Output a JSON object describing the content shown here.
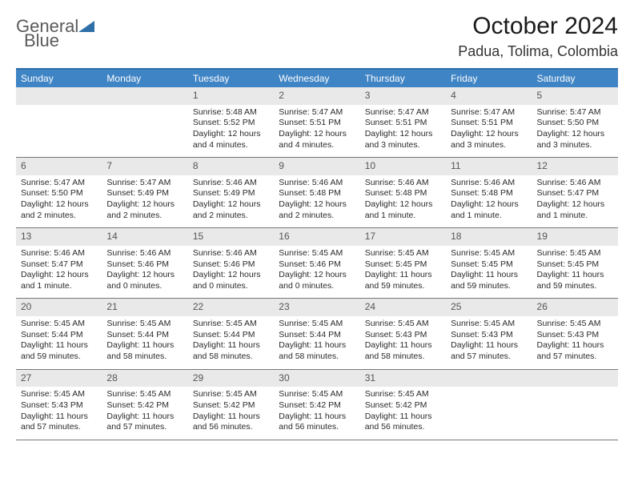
{
  "brand": {
    "name_a": "General",
    "name_b": "Blue"
  },
  "title": "October 2024",
  "location": "Padua, Tolima, Colombia",
  "colors": {
    "header_bg": "#3f84c4",
    "header_rule": "#2f6fa8",
    "daynum_bg": "#e9e9e9",
    "row_border": "#777777",
    "text": "#1a1a1a",
    "logo_gray": "#5a5a5a",
    "logo_blue": "#2f6fa8"
  },
  "day_headers": [
    "Sunday",
    "Monday",
    "Tuesday",
    "Wednesday",
    "Thursday",
    "Friday",
    "Saturday"
  ],
  "weeks": [
    [
      {
        "n": "",
        "sunrise": "",
        "sunset": "",
        "daylight": ""
      },
      {
        "n": "",
        "sunrise": "",
        "sunset": "",
        "daylight": ""
      },
      {
        "n": "1",
        "sunrise": "Sunrise: 5:48 AM",
        "sunset": "Sunset: 5:52 PM",
        "daylight": "Daylight: 12 hours and 4 minutes."
      },
      {
        "n": "2",
        "sunrise": "Sunrise: 5:47 AM",
        "sunset": "Sunset: 5:51 PM",
        "daylight": "Daylight: 12 hours and 4 minutes."
      },
      {
        "n": "3",
        "sunrise": "Sunrise: 5:47 AM",
        "sunset": "Sunset: 5:51 PM",
        "daylight": "Daylight: 12 hours and 3 minutes."
      },
      {
        "n": "4",
        "sunrise": "Sunrise: 5:47 AM",
        "sunset": "Sunset: 5:51 PM",
        "daylight": "Daylight: 12 hours and 3 minutes."
      },
      {
        "n": "5",
        "sunrise": "Sunrise: 5:47 AM",
        "sunset": "Sunset: 5:50 PM",
        "daylight": "Daylight: 12 hours and 3 minutes."
      }
    ],
    [
      {
        "n": "6",
        "sunrise": "Sunrise: 5:47 AM",
        "sunset": "Sunset: 5:50 PM",
        "daylight": "Daylight: 12 hours and 2 minutes."
      },
      {
        "n": "7",
        "sunrise": "Sunrise: 5:47 AM",
        "sunset": "Sunset: 5:49 PM",
        "daylight": "Daylight: 12 hours and 2 minutes."
      },
      {
        "n": "8",
        "sunrise": "Sunrise: 5:46 AM",
        "sunset": "Sunset: 5:49 PM",
        "daylight": "Daylight: 12 hours and 2 minutes."
      },
      {
        "n": "9",
        "sunrise": "Sunrise: 5:46 AM",
        "sunset": "Sunset: 5:48 PM",
        "daylight": "Daylight: 12 hours and 2 minutes."
      },
      {
        "n": "10",
        "sunrise": "Sunrise: 5:46 AM",
        "sunset": "Sunset: 5:48 PM",
        "daylight": "Daylight: 12 hours and 1 minute."
      },
      {
        "n": "11",
        "sunrise": "Sunrise: 5:46 AM",
        "sunset": "Sunset: 5:48 PM",
        "daylight": "Daylight: 12 hours and 1 minute."
      },
      {
        "n": "12",
        "sunrise": "Sunrise: 5:46 AM",
        "sunset": "Sunset: 5:47 PM",
        "daylight": "Daylight: 12 hours and 1 minute."
      }
    ],
    [
      {
        "n": "13",
        "sunrise": "Sunrise: 5:46 AM",
        "sunset": "Sunset: 5:47 PM",
        "daylight": "Daylight: 12 hours and 1 minute."
      },
      {
        "n": "14",
        "sunrise": "Sunrise: 5:46 AM",
        "sunset": "Sunset: 5:46 PM",
        "daylight": "Daylight: 12 hours and 0 minutes."
      },
      {
        "n": "15",
        "sunrise": "Sunrise: 5:46 AM",
        "sunset": "Sunset: 5:46 PM",
        "daylight": "Daylight: 12 hours and 0 minutes."
      },
      {
        "n": "16",
        "sunrise": "Sunrise: 5:45 AM",
        "sunset": "Sunset: 5:46 PM",
        "daylight": "Daylight: 12 hours and 0 minutes."
      },
      {
        "n": "17",
        "sunrise": "Sunrise: 5:45 AM",
        "sunset": "Sunset: 5:45 PM",
        "daylight": "Daylight: 11 hours and 59 minutes."
      },
      {
        "n": "18",
        "sunrise": "Sunrise: 5:45 AM",
        "sunset": "Sunset: 5:45 PM",
        "daylight": "Daylight: 11 hours and 59 minutes."
      },
      {
        "n": "19",
        "sunrise": "Sunrise: 5:45 AM",
        "sunset": "Sunset: 5:45 PM",
        "daylight": "Daylight: 11 hours and 59 minutes."
      }
    ],
    [
      {
        "n": "20",
        "sunrise": "Sunrise: 5:45 AM",
        "sunset": "Sunset: 5:44 PM",
        "daylight": "Daylight: 11 hours and 59 minutes."
      },
      {
        "n": "21",
        "sunrise": "Sunrise: 5:45 AM",
        "sunset": "Sunset: 5:44 PM",
        "daylight": "Daylight: 11 hours and 58 minutes."
      },
      {
        "n": "22",
        "sunrise": "Sunrise: 5:45 AM",
        "sunset": "Sunset: 5:44 PM",
        "daylight": "Daylight: 11 hours and 58 minutes."
      },
      {
        "n": "23",
        "sunrise": "Sunrise: 5:45 AM",
        "sunset": "Sunset: 5:44 PM",
        "daylight": "Daylight: 11 hours and 58 minutes."
      },
      {
        "n": "24",
        "sunrise": "Sunrise: 5:45 AM",
        "sunset": "Sunset: 5:43 PM",
        "daylight": "Daylight: 11 hours and 58 minutes."
      },
      {
        "n": "25",
        "sunrise": "Sunrise: 5:45 AM",
        "sunset": "Sunset: 5:43 PM",
        "daylight": "Daylight: 11 hours and 57 minutes."
      },
      {
        "n": "26",
        "sunrise": "Sunrise: 5:45 AM",
        "sunset": "Sunset: 5:43 PM",
        "daylight": "Daylight: 11 hours and 57 minutes."
      }
    ],
    [
      {
        "n": "27",
        "sunrise": "Sunrise: 5:45 AM",
        "sunset": "Sunset: 5:43 PM",
        "daylight": "Daylight: 11 hours and 57 minutes."
      },
      {
        "n": "28",
        "sunrise": "Sunrise: 5:45 AM",
        "sunset": "Sunset: 5:42 PM",
        "daylight": "Daylight: 11 hours and 57 minutes."
      },
      {
        "n": "29",
        "sunrise": "Sunrise: 5:45 AM",
        "sunset": "Sunset: 5:42 PM",
        "daylight": "Daylight: 11 hours and 56 minutes."
      },
      {
        "n": "30",
        "sunrise": "Sunrise: 5:45 AM",
        "sunset": "Sunset: 5:42 PM",
        "daylight": "Daylight: 11 hours and 56 minutes."
      },
      {
        "n": "31",
        "sunrise": "Sunrise: 5:45 AM",
        "sunset": "Sunset: 5:42 PM",
        "daylight": "Daylight: 11 hours and 56 minutes."
      },
      {
        "n": "",
        "sunrise": "",
        "sunset": "",
        "daylight": ""
      },
      {
        "n": "",
        "sunrise": "",
        "sunset": "",
        "daylight": ""
      }
    ]
  ]
}
